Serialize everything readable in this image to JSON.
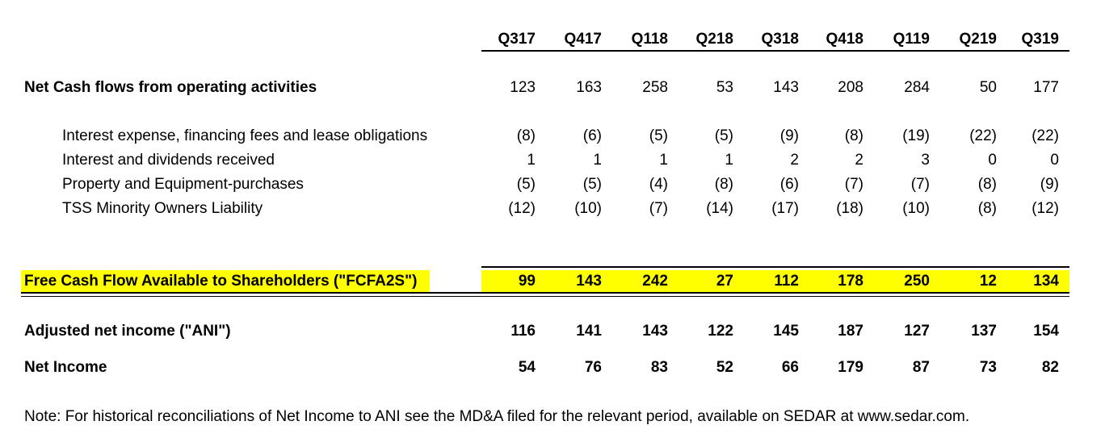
{
  "columns": [
    "Q317",
    "Q417",
    "Q118",
    "Q218",
    "Q318",
    "Q418",
    "Q119",
    "Q219",
    "Q319"
  ],
  "rows": {
    "operating": {
      "label": "Net Cash flows from operating activities",
      "values": [
        "123",
        "163",
        "258",
        "53",
        "143",
        "208",
        "284",
        "50",
        "177"
      ]
    },
    "interest_expense": {
      "label": "Interest expense, financing fees and lease obligations",
      "values": [
        "(8)",
        "(6)",
        "(5)",
        "(5)",
        "(9)",
        "(8)",
        "(19)",
        "(22)",
        "(22)"
      ]
    },
    "interest_dividends": {
      "label": "Interest and dividends received",
      "values": [
        "1",
        "1",
        "1",
        "1",
        "2",
        "2",
        "3",
        "0",
        "0"
      ]
    },
    "property_equipment": {
      "label": "Property and Equipment-purchases",
      "values": [
        "(5)",
        "(5)",
        "(4)",
        "(8)",
        "(6)",
        "(7)",
        "(7)",
        "(8)",
        "(9)"
      ]
    },
    "tss_minority": {
      "label": "TSS Minority Owners Liability",
      "values": [
        "(12)",
        "(10)",
        "(7)",
        "(14)",
        "(17)",
        "(18)",
        "(10)",
        "(8)",
        "(12)"
      ]
    },
    "fcfa2s": {
      "label": "Free Cash Flow Available to Shareholders (\"FCFA2S\")",
      "values": [
        "99",
        "143",
        "242",
        "27",
        "112",
        "178",
        "250",
        "12",
        "134"
      ],
      "highlight_color": "#ffff00"
    },
    "ani": {
      "label": "Adjusted net income (\"ANI\")",
      "values": [
        "116",
        "141",
        "143",
        "122",
        "145",
        "187",
        "127",
        "137",
        "154"
      ]
    },
    "net_income": {
      "label": "Net Income",
      "values": [
        "54",
        "76",
        "83",
        "52",
        "66",
        "179",
        "87",
        "73",
        "82"
      ]
    }
  },
  "note": "Note: For historical reconciliations of Net Income to ANI see the MD&A filed for the relevant period, available on SEDAR at www.sedar.com."
}
